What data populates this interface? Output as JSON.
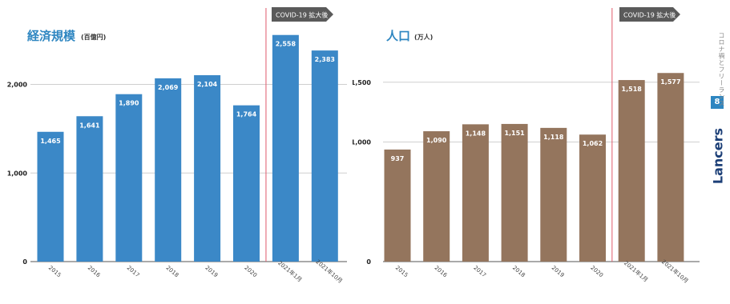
{
  "sidebar": {
    "subtitle": "コロナ禍とフリーランス",
    "page_number": "8",
    "logo": "Lancers",
    "tag_color": "#2e86c1",
    "logo_color": "#1c3f77"
  },
  "colors": {
    "grid": "#cfcfcf",
    "marker": "#e05a6a",
    "banner": "#5a5a5a",
    "tick": "#444444"
  },
  "chart_data": [
    {
      "type": "bar",
      "title": "経済規模",
      "unit": "(百億円)",
      "categories": [
        "2015",
        "2016",
        "2017",
        "2018",
        "2019",
        "2020",
        "2021年1月",
        "2021年10月"
      ],
      "values": [
        1465,
        1641,
        1890,
        2069,
        2104,
        1764,
        2558,
        2383
      ],
      "value_labels": [
        "1,465",
        "1,641",
        "1,890",
        "2,069",
        "2,104",
        "1,764",
        "2,558",
        "2,383"
      ],
      "yticks": [
        0,
        1000,
        2000
      ],
      "ytick_labels": [
        "0",
        "1,000",
        "2,000"
      ],
      "ylim": [
        0,
        2700
      ],
      "bar_color": "#3b88c7",
      "title_color": "#2e86c1",
      "marker_before_index": 6,
      "banner": "COVID-19 拡大後"
    },
    {
      "type": "bar",
      "title": "人口",
      "unit": "(万人)",
      "categories": [
        "2015",
        "2016",
        "2017",
        "2018",
        "2019",
        "2020",
        "2021年1月",
        "2021年10月"
      ],
      "values": [
        937,
        1090,
        1148,
        1151,
        1118,
        1062,
        1518,
        1577
      ],
      "value_labels": [
        "937",
        "1,090",
        "1,148",
        "1,151",
        "1,118",
        "1,062",
        "1,518",
        "1,577"
      ],
      "yticks": [
        0,
        1000,
        1500
      ],
      "ytick_labels": [
        "0",
        "1,000",
        "1,500"
      ],
      "ylim": [
        0,
        2000
      ],
      "bar_color": "#94755d",
      "title_color": "#2e86c1",
      "marker_before_index": 6,
      "banner": "COVID-19 拡大後"
    }
  ]
}
